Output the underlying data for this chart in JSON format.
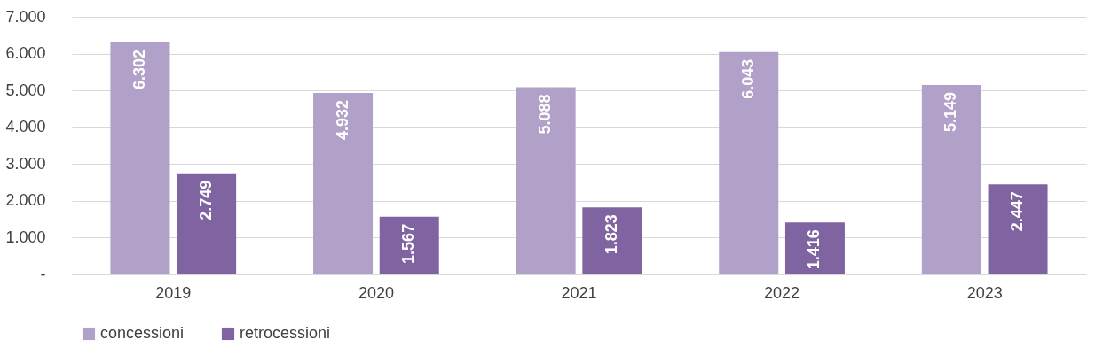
{
  "chart_data": {
    "type": "bar",
    "categories": [
      "2019",
      "2020",
      "2021",
      "2022",
      "2023"
    ],
    "series": [
      {
        "name": "concessioni",
        "color": "#b1a0c7",
        "values": [
          6302,
          4932,
          5088,
          6043,
          5149
        ],
        "value_labels": [
          "6.302",
          "4.932",
          "5.088",
          "6.043",
          "5.149"
        ]
      },
      {
        "name": "retrocessioni",
        "color": "#8064a2",
        "values": [
          2749,
          1567,
          1823,
          1416,
          2447
        ],
        "value_labels": [
          "2.749",
          "1.567",
          "1.823",
          "1.416",
          "2.447"
        ]
      }
    ],
    "ylim": [
      0,
      7000
    ],
    "yticks": [
      {
        "value": 0,
        "label": "-"
      },
      {
        "value": 1000,
        "label": "1.000"
      },
      {
        "value": 2000,
        "label": "2.000"
      },
      {
        "value": 3000,
        "label": "3.000"
      },
      {
        "value": 4000,
        "label": "4.000"
      },
      {
        "value": 5000,
        "label": "5.000"
      },
      {
        "value": 6000,
        "label": "6.000"
      },
      {
        "value": 7000,
        "label": "7.000"
      }
    ],
    "grid": "y",
    "legend": "bottom"
  }
}
